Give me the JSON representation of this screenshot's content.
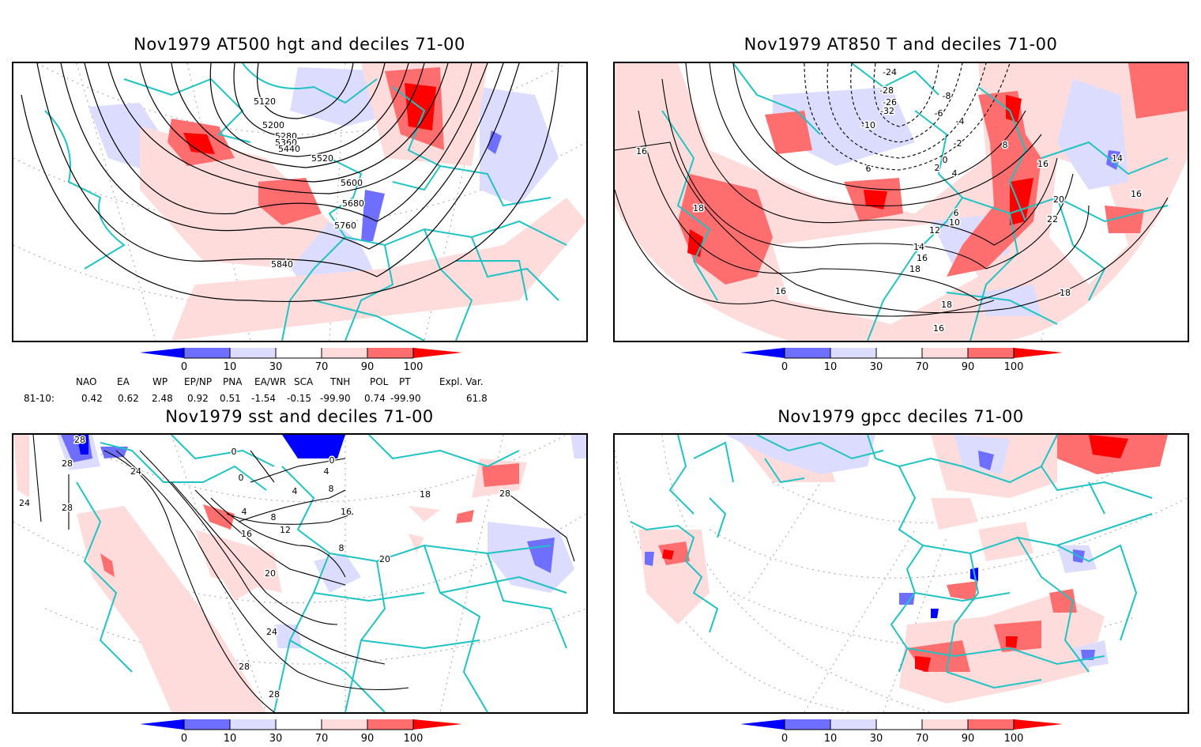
{
  "palette": {
    "coast": "#1fc3c3",
    "d0": "#0000ff",
    "d10": "#6e6eff",
    "d30": "#dcdcff",
    "d70": "#ffdcdc",
    "d90": "#ff6e6e",
    "d100": "#ff0000",
    "contour": "#000000",
    "grid": "#a0a0a0"
  },
  "colorbar": {
    "ticks": [
      "0",
      "10",
      "30",
      "70",
      "90",
      "100"
    ],
    "classes": [
      "d0",
      "d10",
      "d30",
      "white",
      "d70",
      "d90",
      "d100"
    ]
  },
  "indices": {
    "headers": [
      "NAO",
      "EA",
      "WP",
      "EP/NP",
      "PNA",
      "EA/WR",
      "SCA",
      "TNH",
      "POL",
      "PT",
      "Expl. Var."
    ],
    "row_label": "81-10:",
    "values": [
      "0.42",
      "0.62",
      "2.48",
      "0.92",
      "0.51",
      "-1.54",
      "-0.15",
      "-99.90",
      "0.74",
      "-99.90",
      "61.8"
    ]
  },
  "chart_data": [
    {
      "type": "heatmap",
      "title": "Nov1979 AT500 hgt and deciles 71-00",
      "overlay": "contour",
      "contour_labels": [
        "5120",
        "5200",
        "5280",
        "5360",
        "5440",
        "5520",
        "5600",
        "5680",
        "5760",
        "5840"
      ],
      "colorbar_ticks": [
        0,
        10,
        30,
        70,
        90,
        100
      ]
    },
    {
      "type": "heatmap",
      "title": "Nov1979 AT850 T and deciles 71-00",
      "overlay": "contour",
      "contour_labels": [
        "-24",
        "-28",
        "-26",
        "-32",
        "-10",
        "-8",
        "-6",
        "-4",
        "-2",
        "0",
        "2",
        "4",
        "6",
        "8",
        "6",
        "10",
        "12",
        "14",
        "16",
        "18",
        "20",
        "22",
        "16",
        "16",
        "18",
        "18",
        "16",
        "14",
        "16",
        "18",
        "16"
      ],
      "colorbar_ticks": [
        0,
        10,
        30,
        70,
        90,
        100
      ]
    },
    {
      "type": "heatmap",
      "title": "Nov1979 sst and deciles 71-00",
      "overlay": "contour",
      "contour_labels": [
        "28",
        "28",
        "24",
        "28",
        "24",
        "0",
        "0",
        "0",
        "4",
        "4",
        "8",
        "4",
        "8",
        "12",
        "16",
        "20",
        "16",
        "8",
        "18",
        "20",
        "28",
        "24",
        "28",
        "28"
      ],
      "colorbar_ticks": [
        0,
        10,
        30,
        70,
        90,
        100
      ]
    },
    {
      "type": "heatmap",
      "title": "Nov1979 gpcc deciles 71-00",
      "overlay": "none",
      "colorbar_ticks": [
        0,
        10,
        30,
        70,
        90,
        100
      ]
    }
  ]
}
